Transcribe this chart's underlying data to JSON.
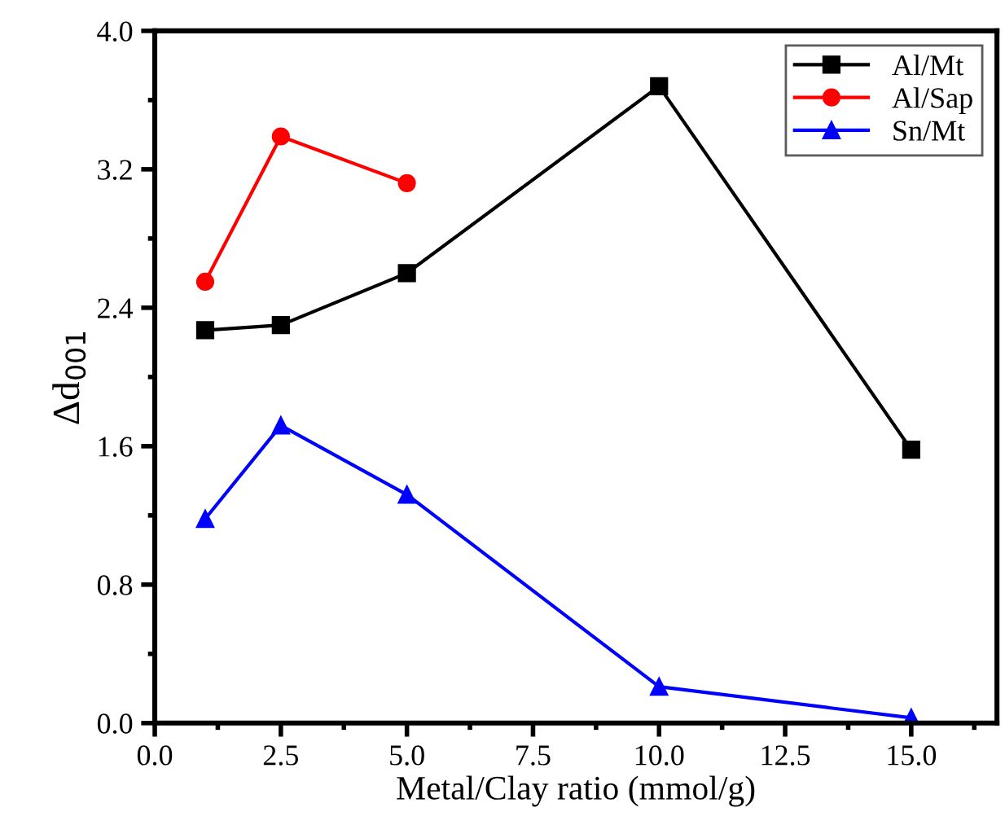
{
  "chart_data": {
    "type": "line",
    "xlabel": "Metal/Clay ratio (mmol/g)",
    "ylabel": "Δd$_{001}$",
    "series": [
      {
        "name": "Al/Mt",
        "color": "#000000",
        "marker": "square",
        "x": [
          1,
          2.5,
          5,
          10,
          15
        ],
        "values": [
          2.27,
          2.3,
          2.6,
          3.68,
          1.58
        ]
      },
      {
        "name": "Al/Sap",
        "color": "#ff0000",
        "marker": "circle",
        "x": [
          1,
          2.5,
          5
        ],
        "values": [
          2.55,
          3.39,
          3.12
        ]
      },
      {
        "name": "Sn/Mt",
        "color": "#0000ff",
        "marker": "triangle",
        "x": [
          1,
          2.5,
          5,
          10,
          15
        ],
        "values": [
          1.18,
          1.72,
          1.32,
          0.21,
          0.03
        ]
      }
    ],
    "xlim": [
      0,
      16.7
    ],
    "ylim": [
      0,
      4.0
    ],
    "xticks": [
      {
        "value": 0,
        "label": "0.0"
      },
      {
        "value": 2.5,
        "label": "2.5"
      },
      {
        "value": 5,
        "label": "5.0"
      },
      {
        "value": 7.5,
        "label": "7.5"
      },
      {
        "value": 10,
        "label": "10.0"
      },
      {
        "value": 12.5,
        "label": "12.5"
      },
      {
        "value": 15,
        "label": "15.0"
      }
    ],
    "yticks": [
      {
        "value": 0,
        "label": "0.0"
      },
      {
        "value": 0.8,
        "label": "0.8"
      },
      {
        "value": 1.6,
        "label": "1.6"
      },
      {
        "value": 2.4,
        "label": "2.4"
      },
      {
        "value": 3.2,
        "label": "3.2"
      },
      {
        "value": 4.0,
        "label": "4.0"
      }
    ],
    "grid": false,
    "legend": "top right",
    "line_style": "solid"
  }
}
